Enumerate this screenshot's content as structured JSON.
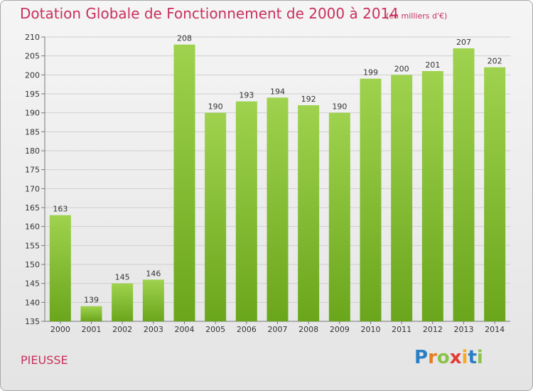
{
  "title": "Dotation Globale de Fonctionnement de 2000 à 2014",
  "subtitle": "(en milliers d'€)",
  "commune": "PIEUSSE",
  "logo": {
    "letters": [
      "P",
      "r",
      "o",
      "x",
      "i",
      "t",
      "i"
    ],
    "colors": [
      "#2a7fc4",
      "#e67e22",
      "#8bc34a",
      "#e53935",
      "#f9a825",
      "#2a7fc4",
      "#8bc34a"
    ]
  },
  "chart_data": {
    "type": "bar",
    "categories": [
      "2000",
      "2001",
      "2002",
      "2003",
      "2004",
      "2005",
      "2006",
      "2007",
      "2008",
      "2009",
      "2010",
      "2011",
      "2012",
      "2013",
      "2014"
    ],
    "values": [
      163,
      139,
      145,
      146,
      208,
      190,
      193,
      194,
      192,
      190,
      199,
      200,
      201,
      207,
      202
    ],
    "ylim": [
      135,
      210
    ],
    "yticks": [
      135,
      140,
      145,
      150,
      155,
      160,
      165,
      170,
      175,
      180,
      185,
      190,
      195,
      200,
      205,
      210
    ],
    "grid": true,
    "bar_color": "#7cbd2c"
  }
}
